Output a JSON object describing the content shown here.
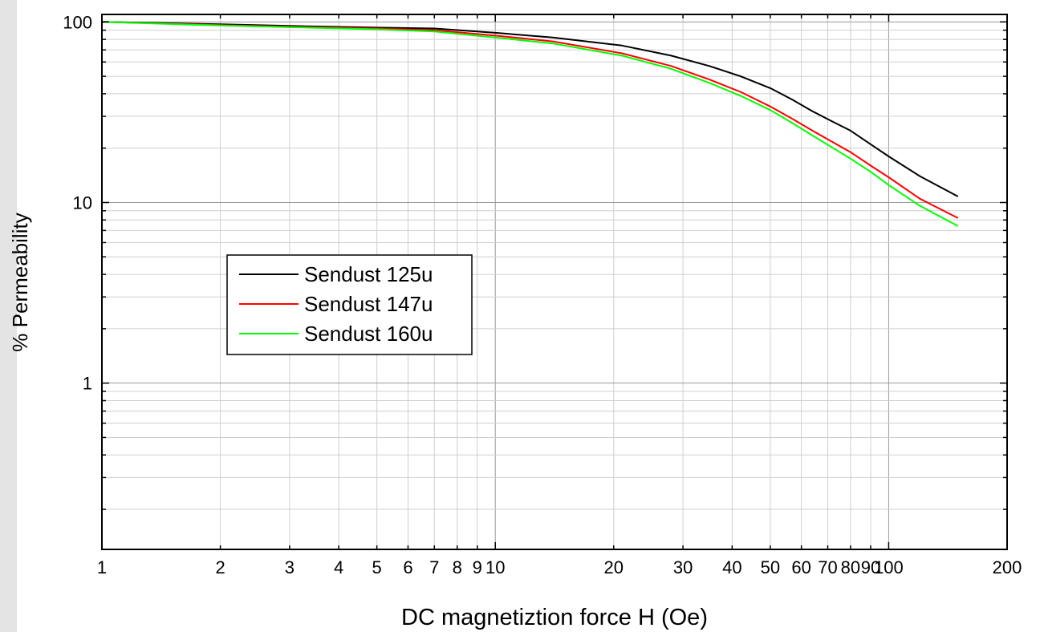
{
  "chart_data": {
    "type": "line",
    "title": "",
    "xlabel": "DC magnetiztion force H (Oe)",
    "ylabel": "% Permeability",
    "x_scale": "log",
    "y_scale": "log",
    "xlim": [
      1,
      200
    ],
    "ylim": [
      0.12,
      110
    ],
    "grid": true,
    "legend_position": "center-left",
    "x_tick_labels": [
      {
        "value": 1,
        "label": "1"
      },
      {
        "value": 2,
        "label": "2"
      },
      {
        "value": 3,
        "label": "3"
      },
      {
        "value": 4,
        "label": "4"
      },
      {
        "value": 5,
        "label": "5"
      },
      {
        "value": 6,
        "label": "6"
      },
      {
        "value": 7,
        "label": "7"
      },
      {
        "value": 8,
        "label": "8"
      },
      {
        "value": 9,
        "label": "9"
      },
      {
        "value": 10,
        "label": "10"
      },
      {
        "value": 20,
        "label": "20"
      },
      {
        "value": 30,
        "label": "30"
      },
      {
        "value": 40,
        "label": "40"
      },
      {
        "value": 50,
        "label": "50"
      },
      {
        "value": 60,
        "label": "60"
      },
      {
        "value": 70,
        "label": "70"
      },
      {
        "value": 80,
        "label": "80"
      },
      {
        "value": 90,
        "label": "90"
      },
      {
        "value": 100,
        "label": "100"
      },
      {
        "value": 200,
        "label": "200"
      }
    ],
    "y_tick_labels": [
      {
        "value": 1,
        "label": "1"
      },
      {
        "value": 10,
        "label": "10"
      },
      {
        "value": 100,
        "label": "100"
      }
    ],
    "series": [
      {
        "name": "Sendust 125u",
        "color": "#000000",
        "x": [
          1,
          2,
          3,
          5,
          7,
          10,
          14,
          21,
          28,
          35,
          42,
          50,
          57,
          64,
          71,
          80,
          90,
          100,
          120,
          150
        ],
        "y": [
          100,
          97,
          95,
          93,
          92,
          87,
          82,
          74,
          65,
          57,
          50,
          43,
          37,
          32,
          28.5,
          25,
          21,
          18,
          14,
          10.8
        ]
      },
      {
        "name": "Sendust 147u",
        "color": "#ff0000",
        "x": [
          1,
          2,
          3,
          5,
          7,
          10,
          14,
          21,
          28,
          35,
          42,
          50,
          57,
          64,
          71,
          80,
          90,
          100,
          120,
          150
        ],
        "y": [
          100,
          96,
          94,
          92,
          90,
          84,
          78,
          67,
          57,
          48,
          41,
          34,
          29,
          25,
          22,
          19,
          16,
          13.8,
          10.5,
          8.2
        ]
      },
      {
        "name": "Sendust 160u",
        "color": "#00ff00",
        "x": [
          1,
          2,
          3,
          5,
          7,
          10,
          14,
          21,
          28,
          35,
          42,
          50,
          57,
          64,
          71,
          80,
          90,
          100,
          120,
          150
        ],
        "y": [
          100,
          95.5,
          93.5,
          91,
          88.5,
          82,
          76,
          65,
          55,
          46,
          39,
          32.5,
          27.5,
          23.5,
          20.5,
          17.5,
          14.8,
          12.5,
          9.6,
          7.4
        ]
      }
    ]
  }
}
